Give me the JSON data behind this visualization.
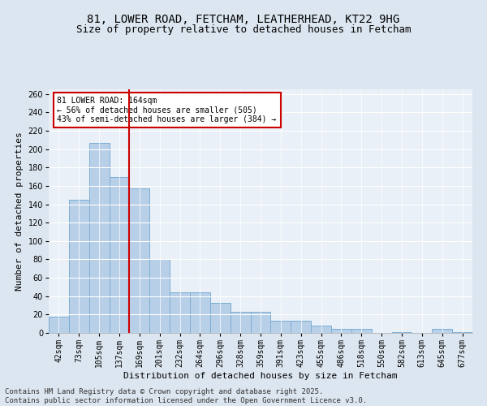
{
  "title1": "81, LOWER ROAD, FETCHAM, LEATHERHEAD, KT22 9HG",
  "title2": "Size of property relative to detached houses in Fetcham",
  "xlabel": "Distribution of detached houses by size in Fetcham",
  "ylabel": "Number of detached properties",
  "categories": [
    "42sqm",
    "73sqm",
    "105sqm",
    "137sqm",
    "169sqm",
    "201sqm",
    "232sqm",
    "264sqm",
    "296sqm",
    "328sqm",
    "359sqm",
    "391sqm",
    "423sqm",
    "455sqm",
    "486sqm",
    "518sqm",
    "550sqm",
    "582sqm",
    "613sqm",
    "645sqm",
    "677sqm"
  ],
  "values": [
    18,
    145,
    207,
    170,
    157,
    80,
    44,
    44,
    33,
    23,
    23,
    13,
    13,
    8,
    4,
    4,
    0,
    1,
    0,
    4,
    1
  ],
  "bar_color": "#b8cfe8",
  "bar_edge_color": "#7aadd4",
  "vline_index": 4,
  "vline_color": "#cc0000",
  "annotation_text": "81 LOWER ROAD: 164sqm\n← 56% of detached houses are smaller (505)\n43% of semi-detached houses are larger (384) →",
  "annotation_box_color": "#ffffff",
  "annotation_box_edge": "#cc0000",
  "ylim": [
    0,
    265
  ],
  "yticks": [
    0,
    20,
    40,
    60,
    80,
    100,
    120,
    140,
    160,
    180,
    200,
    220,
    240,
    260
  ],
  "bg_color": "#dce6f0",
  "plot_bg_color": "#eaf0f7",
  "footer": "Contains HM Land Registry data © Crown copyright and database right 2025.\nContains public sector information licensed under the Open Government Licence v3.0.",
  "title1_fontsize": 10,
  "title2_fontsize": 9,
  "label_fontsize": 8,
  "tick_fontsize": 7,
  "footer_fontsize": 6.5,
  "annotation_fontsize": 7
}
